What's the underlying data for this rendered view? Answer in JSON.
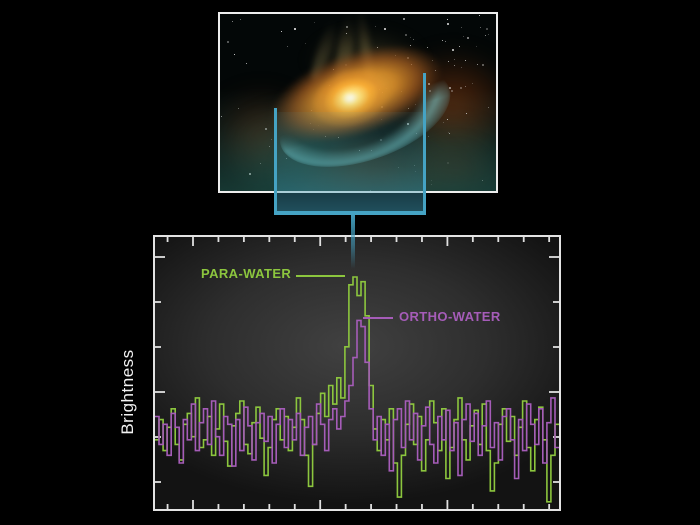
{
  "colors": {
    "background": "#000000",
    "accent_cyan": "#45a3c4",
    "para_green": "#8cc63e",
    "ortho_purple": "#a55cb8",
    "plot_border": "#e3e3e3",
    "frame_border": "#ededed",
    "axis_text": "#f2f2f2"
  },
  "illustration": {
    "name": "protoplanetary-disk-artwork"
  },
  "plot": {
    "ylabel": "Brightness",
    "labels": {
      "para": "PARA-WATER",
      "ortho": "ORTHO-WATER"
    }
  },
  "chart_data": {
    "type": "line",
    "style": "histogram-step",
    "title": "",
    "xlabel": "",
    "ylabel": "Brightness",
    "x_tick_labels": "none",
    "y_tick_labels": "none",
    "grid": false,
    "legend_position": "inline-annotations",
    "baseline": 0,
    "ylim": [
      -0.55,
      1.25
    ],
    "n_bins": 100,
    "series": [
      {
        "name": "PARA-WATER",
        "color": "#8cc63e",
        "values": [
          -0.05,
          0.08,
          -0.12,
          0.03,
          0.15,
          -0.08,
          -0.18,
          0.05,
          0.12,
          -0.03,
          0.22,
          -0.1,
          -0.05,
          0.1,
          -0.15,
          0.02,
          0.18,
          -0.06,
          -0.22,
          0.04,
          0.12,
          0.2,
          -0.08,
          -0.14,
          0.06,
          0.16,
          -0.04,
          -0.28,
          -0.1,
          0.08,
          0.15,
          -0.05,
          0.1,
          -0.12,
          0.03,
          0.22,
          0.08,
          -0.15,
          -0.35,
          -0.08,
          0.12,
          0.25,
          0.1,
          0.3,
          0.18,
          0.35,
          0.22,
          0.55,
          0.95,
          1.0,
          0.88,
          0.97,
          0.75,
          0.3,
          0.02,
          -0.12,
          0.08,
          -0.05,
          0.15,
          -0.2,
          -0.42,
          -0.15,
          0.05,
          0.18,
          -0.08,
          0.1,
          -0.25,
          -0.05,
          0.2,
          0.06,
          -0.12,
          0.15,
          -0.3,
          -0.1,
          0.08,
          0.22,
          -0.05,
          -0.18,
          0.04,
          0.14,
          -0.08,
          0.18,
          -0.12,
          -0.38,
          -0.2,
          0.05,
          0.15,
          -0.06,
          0.1,
          -0.15,
          0.03,
          0.2,
          -0.1,
          -0.25,
          0.08,
          0.16,
          -0.05,
          -0.45,
          -0.15,
          0.05
        ]
      },
      {
        "name": "ORTHO-WATER",
        "color": "#a55cb8",
        "values": [
          0.1,
          -0.08,
          0.05,
          -0.15,
          0.12,
          0.03,
          -0.2,
          0.08,
          -0.05,
          0.18,
          -0.12,
          0.06,
          0.15,
          -0.08,
          0.2,
          -0.03,
          -0.15,
          0.1,
          0.05,
          -0.22,
          0.08,
          -0.12,
          0.16,
          0.04,
          -0.18,
          0.06,
          0.12,
          -0.06,
          0.1,
          -0.2,
          0.05,
          0.15,
          -0.1,
          0.08,
          -0.05,
          0.12,
          -0.15,
          0.03,
          0.1,
          -0.08,
          0.18,
          0.05,
          -0.12,
          0.08,
          0.15,
          0.02,
          0.1,
          0.2,
          0.3,
          0.48,
          0.72,
          0.68,
          0.45,
          0.15,
          -0.05,
          0.1,
          -0.15,
          0.05,
          -0.25,
          0.08,
          0.15,
          -0.1,
          0.2,
          -0.05,
          0.12,
          -0.18,
          0.04,
          0.16,
          -0.08,
          -0.2,
          0.1,
          -0.05,
          0.14,
          -0.12,
          0.06,
          -0.28,
          0.08,
          0.18,
          -0.06,
          0.12,
          -0.15,
          0.04,
          0.2,
          -0.1,
          0.06,
          -0.18,
          0.1,
          0.15,
          -0.05,
          -0.3,
          0.08,
          -0.12,
          0.18,
          0.05,
          -0.08,
          0.15,
          -0.2,
          0.06,
          0.22,
          -0.1
        ]
      }
    ]
  }
}
